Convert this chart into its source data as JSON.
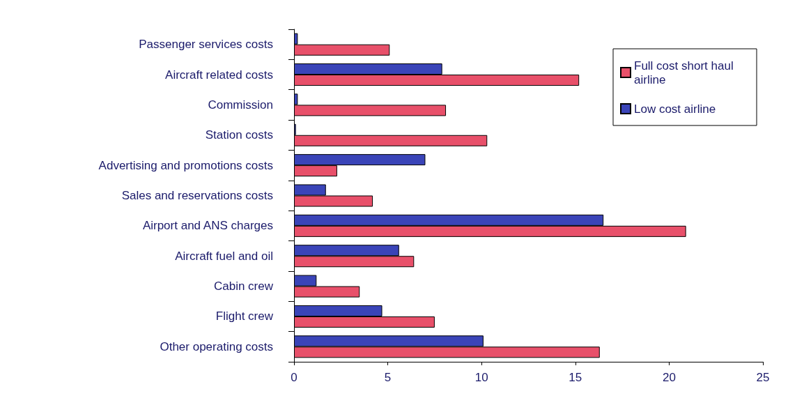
{
  "chart_data": {
    "type": "bar",
    "orientation": "horizontal",
    "categories": [
      "Passenger services costs",
      "Aircraft related costs",
      "Commission",
      "Station costs",
      "Advertising and promotions costs",
      "Sales and reservations costs",
      "Airport and ANS charges",
      "Aircraft fuel and oil",
      "Cabin crew",
      "Flight crew",
      "Other operating costs"
    ],
    "series": [
      {
        "name": "Full cost short haul airline",
        "color": "#e8506a",
        "values": [
          5.1,
          15.2,
          8.1,
          10.3,
          2.3,
          4.2,
          20.9,
          6.4,
          3.5,
          7.5,
          16.3
        ]
      },
      {
        "name": "Low cost airline",
        "color": "#3a44b8",
        "values": [
          0.2,
          7.9,
          0.2,
          0.1,
          7.0,
          1.7,
          16.5,
          5.6,
          1.2,
          4.7,
          10.1
        ]
      }
    ],
    "xlim": [
      0,
      25
    ],
    "xticks": [
      0,
      5,
      10,
      15,
      20,
      25
    ],
    "grid": false,
    "legend": "top right"
  }
}
